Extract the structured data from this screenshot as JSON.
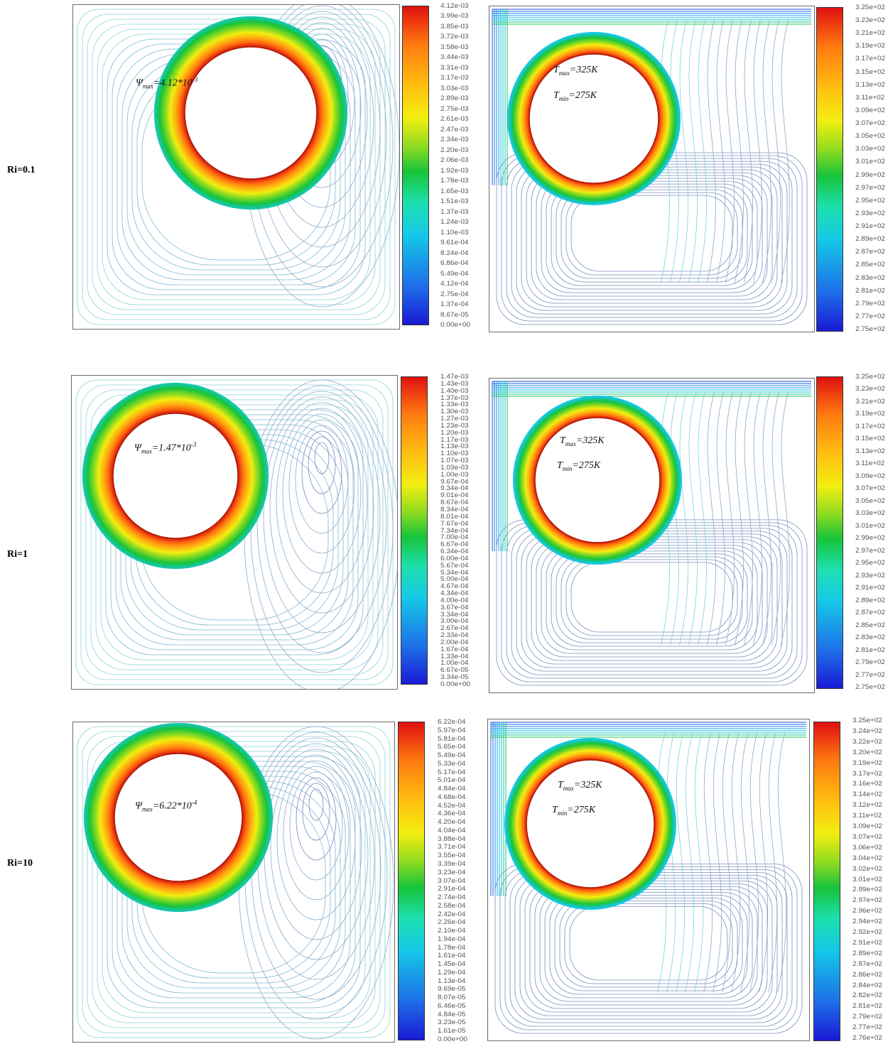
{
  "rows": [
    {
      "label": "Ri=0.1",
      "psi": {
        "prefix": "Ψ",
        "sub": "max",
        "value": "=4.12*10",
        "exp": "-3"
      },
      "tmax": {
        "prefix": "T",
        "sub": "max",
        "value": "=325K"
      },
      "tmin": {
        "prefix": "T",
        "sub": "min",
        "value": "=275K"
      },
      "psi_ticks": [
        "4.12e-03",
        "3.99e-03",
        "3.85e-03",
        "3.72e-03",
        "3.58e-03",
        "3.44e-03",
        "3.31e-03",
        "3.17e-03",
        "3.03e-03",
        "2.89e-03",
        "2.75e-03",
        "2.61e-03",
        "2.47e-03",
        "2.34e-03",
        "2.20e-03",
        "2.06e-03",
        "1.92e-03",
        "1.78e-03",
        "1.65e-03",
        "1.51e-03",
        "1.37e-03",
        "1.24e-03",
        "1.10e-03",
        "9.61e-04",
        "8.24e-04",
        "6.86e-04",
        "5.49e-04",
        "4.12e-04",
        "2.75e-04",
        "1.37e-04",
        "8.67e-05",
        "0.00e+00"
      ],
      "t_ticks": [
        "3.25e+02",
        "3.23e+02",
        "3.21e+02",
        "3.19e+02",
        "3.17e+02",
        "3.15e+02",
        "3.13e+02",
        "3.11e+02",
        "3.09e+02",
        "3.07e+02",
        "3.05e+02",
        "3.03e+02",
        "3.01e+02",
        "2.99e+02",
        "2.97e+02",
        "2.95e+02",
        "2.93e+02",
        "2.91e+02",
        "2.89e+02",
        "2.87e+02",
        "2.85e+02",
        "2.83e+02",
        "2.81e+02",
        "2.79e+02",
        "2.77e+02",
        "2.75e+02"
      ]
    },
    {
      "label": "Ri=1",
      "psi": {
        "prefix": "Ψ",
        "sub": "max",
        "value": "=1.47*10",
        "exp": "-3"
      },
      "tmax": {
        "prefix": "T",
        "sub": "max",
        "value": "=325K"
      },
      "tmin": {
        "prefix": "T",
        "sub": "min",
        "value": "=275K"
      },
      "psi_ticks": [
        "1.47e-03",
        "1.43e-03",
        "1.40e-03",
        "1.37e-03",
        "1.33e-03",
        "1.30e-03",
        "1.27e-03",
        "1.23e-03",
        "1.20e-03",
        "1.17e-03",
        "1.13e-03",
        "1.10e-03",
        "1.07e-03",
        "1.03e-03",
        "1.00e-03",
        "9.67e-04",
        "9.34e-04",
        "9.01e-04",
        "8.67e-04",
        "8.34e-04",
        "8.01e-04",
        "7.67e-04",
        "7.34e-04",
        "7.00e-04",
        "6.67e-04",
        "6.34e-04",
        "6.00e-04",
        "5.67e-04",
        "5.34e-04",
        "5.00e-04",
        "4.67e-04",
        "4.34e-04",
        "4.00e-04",
        "3.67e-04",
        "3.34e-04",
        "3.00e-04",
        "2.67e-04",
        "2.33e-04",
        "2.00e-04",
        "1.67e-04",
        "1.33e-04",
        "1.00e-04",
        "6.67e-05",
        "3.34e-05",
        "0.00e+00"
      ],
      "t_ticks": [
        "3.25e+02",
        "3.23e+02",
        "3.21e+02",
        "3.19e+02",
        "3.17e+02",
        "3.15e+02",
        "3.13e+02",
        "3.11e+02",
        "3.09e+02",
        "3.07e+02",
        "3.05e+02",
        "3.03e+02",
        "3.01e+02",
        "2.99e+02",
        "2.97e+02",
        "2.95e+02",
        "2.93e+02",
        "2.91e+02",
        "2.89e+02",
        "2.87e+02",
        "2.85e+02",
        "2.83e+02",
        "2.81e+02",
        "2.79e+02",
        "2.77e+02",
        "2.75e+02"
      ]
    },
    {
      "label": "Ri=10",
      "psi": {
        "prefix": "Ψ",
        "sub": "max",
        "value": "=6.22*10",
        "exp": "-4"
      },
      "tmax": {
        "prefix": "T",
        "sub": "max",
        "value": "=325K"
      },
      "tmin": {
        "prefix": "T",
        "sub": "min",
        "value": "=275K"
      },
      "psi_ticks": [
        "6.22e-04",
        "5.97e-04",
        "5.81e-04",
        "5.65e-04",
        "5.49e-04",
        "5.33e-04",
        "5.17e-04",
        "5.01e-04",
        "4.84e-04",
        "4.68e-04",
        "4.52e-04",
        "4.36e-04",
        "4.20e-04",
        "4.04e-04",
        "3.88e-04",
        "3.71e-04",
        "3.55e-04",
        "3.39e-04",
        "3.23e-04",
        "3.07e-04",
        "2.91e-04",
        "2.74e-04",
        "2.58e-04",
        "2.42e-04",
        "2.26e-04",
        "2.10e-04",
        "1.94e-04",
        "1.78e-04",
        "1.61e-04",
        "1.45e-04",
        "1.29e-04",
        "1.13e-04",
        "9.69e-05",
        "8.07e-05",
        "6.46e-05",
        "4.84e-05",
        "3.23e-05",
        "1.61e-05",
        "0.00e+00"
      ],
      "t_ticks": [
        "3.25e+02",
        "3.24e+02",
        "3.22e+02",
        "3.20e+02",
        "3.19e+02",
        "3.17e+02",
        "3.16e+02",
        "3.14e+02",
        "3.12e+02",
        "3.11e+02",
        "3.09e+02",
        "3.07e+02",
        "3.06e+02",
        "3.04e+02",
        "3.02e+02",
        "3.01e+02",
        "2.99e+02",
        "2.97e+02",
        "2.96e+02",
        "2.94e+02",
        "2.92e+02",
        "2.91e+02",
        "2.89e+02",
        "2.87e+02",
        "2.86e+02",
        "2.84e+02",
        "2.82e+02",
        "2.81e+02",
        "2.79e+02",
        "2.77e+02",
        "2.76e+02"
      ]
    }
  ]
}
